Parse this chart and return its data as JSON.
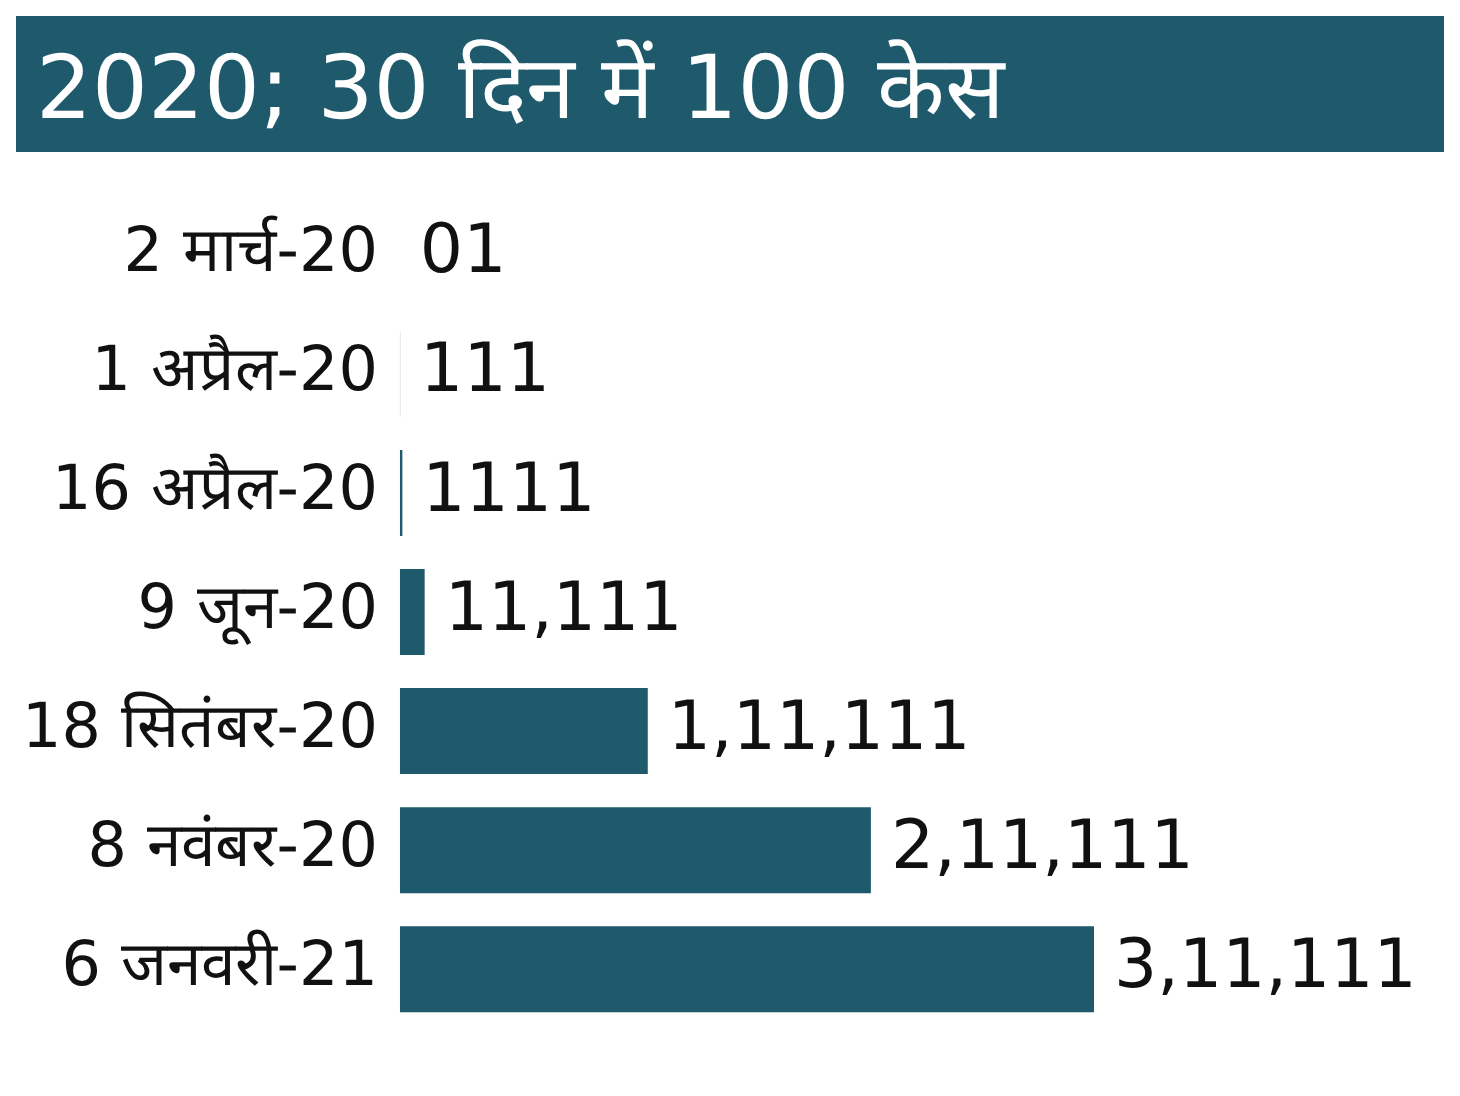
{
  "chart_data": {
    "type": "bar",
    "orientation": "horizontal",
    "title": "2020; 30 दिन में 100 केस",
    "categories": [
      "2 मार्च-20",
      "1 अप्रैल-20",
      "16 अप्रैल-20",
      "9 जून-20",
      "18 सितंबर-20",
      "8 नवंबर-20",
      "6 जनवरी-21"
    ],
    "values": [
      1,
      111,
      1111,
      11111,
      111111,
      211111,
      311111
    ],
    "value_labels": [
      "01",
      "111",
      "1111",
      "11,111",
      "1,11,111",
      "2,11,111",
      "3,11,111"
    ],
    "color": "#1e5a6b"
  }
}
